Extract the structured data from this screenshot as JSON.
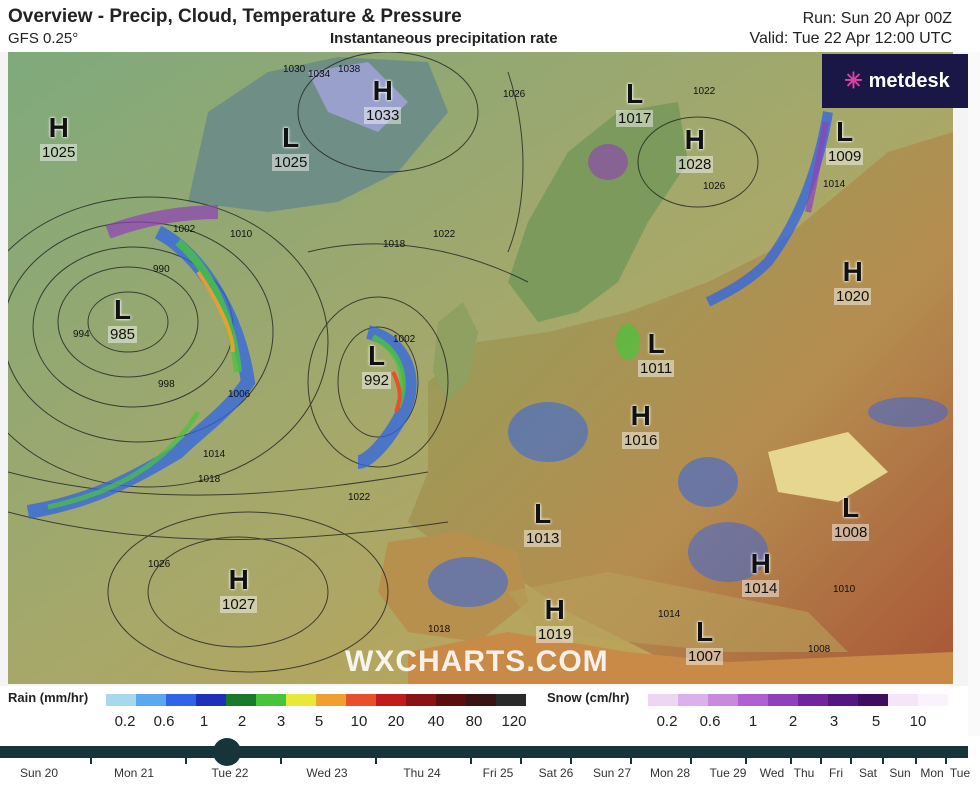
{
  "header": {
    "title": "Overview - Precip, Cloud, Temperature & Pressure",
    "model": "GFS 0.25°",
    "layer": "Instantaneous precipitation rate",
    "run": "Run: Sun 20 Apr 00Z",
    "valid": "Valid: Tue 22 Apr 12:00 UTC"
  },
  "logo": {
    "text": "metdesk",
    "icon": "burst-icon"
  },
  "watermark": "WXCHARTS.COM",
  "pressure_centres": [
    {
      "type": "H",
      "value": "1025"
    },
    {
      "type": "L",
      "value": "1025"
    },
    {
      "type": "H",
      "value": "1033"
    },
    {
      "type": "L",
      "value": "1017"
    },
    {
      "type": "H",
      "value": "1028"
    },
    {
      "type": "L",
      "value": "1009"
    },
    {
      "type": "H",
      "value": "1020"
    },
    {
      "type": "L",
      "value": "985"
    },
    {
      "type": "L",
      "value": "992"
    },
    {
      "type": "L",
      "value": "1011"
    },
    {
      "type": "H",
      "value": "1016"
    },
    {
      "type": "L",
      "value": "1013"
    },
    {
      "type": "L",
      "value": "1008"
    },
    {
      "type": "H",
      "value": "1027"
    },
    {
      "type": "H",
      "value": "1014"
    },
    {
      "type": "H",
      "value": "1019"
    },
    {
      "type": "L",
      "value": "1007"
    }
  ],
  "isobar_labels": [
    "990",
    "994",
    "998",
    "1002",
    "1006",
    "1010",
    "1014",
    "1018",
    "1022",
    "1026",
    "1030",
    "1034",
    "1038",
    "1018",
    "1022",
    "1026",
    "1022",
    "1026",
    "1014",
    "1010",
    "1018",
    "1008",
    "1014",
    "1002"
  ],
  "legend": {
    "rain_title": "Rain (mm/hr)",
    "rain_ticks": [
      "0.2",
      "0.6",
      "1",
      "2",
      "3",
      "5",
      "10",
      "20",
      "40",
      "80",
      "120"
    ],
    "rain_colors": [
      "#a6d8f0",
      "#5aa9f0",
      "#2f64e6",
      "#1e2fb8",
      "#1a7a2c",
      "#48c43c",
      "#e8e83a",
      "#f0a030",
      "#e8502c",
      "#c01c1c",
      "#8a1414",
      "#5c0e0e",
      "#3a1414",
      "#2a2a2a"
    ],
    "snow_title": "Snow (cm/hr)",
    "snow_ticks": [
      "0.2",
      "0.6",
      "1",
      "2",
      "3",
      "5",
      "10"
    ],
    "snow_colors": [
      "#ecd6f2",
      "#dcb0ea",
      "#c889de",
      "#b060d0",
      "#9040b8",
      "#72249c",
      "#561680",
      "#3e0c60",
      "#f4e6f8",
      "#faf2fc"
    ]
  },
  "timeline": {
    "days": [
      "Sun 20",
      "Mon 21",
      "Tue 22",
      "Wed 23",
      "Thu 24",
      "Fri 25",
      "Sat 26",
      "Sun 27",
      "Mon 28",
      "Tue 29",
      "Wed",
      "Thu",
      "Fri",
      "Sat",
      "Sun",
      "Mon",
      "Tue"
    ],
    "selected": "Tue 22"
  }
}
